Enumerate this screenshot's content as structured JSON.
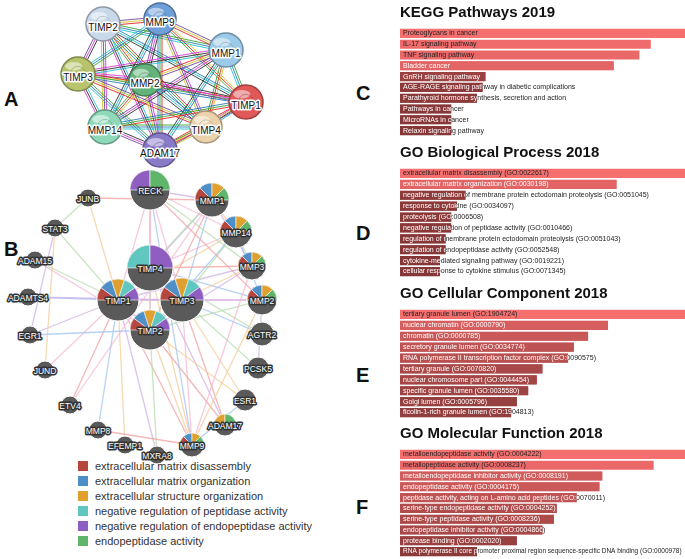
{
  "chart_data": [
    {
      "type": "bar",
      "annotations": [
        "C"
      ],
      "title": "KEGG Pathways 2019",
      "orientation": "horizontal",
      "categories": [
        "Proteoglycans in cancer",
        "IL-17 signaling pathway",
        "TNF signaling pathway",
        "Bladder cancer",
        "GnRH signaling pathway",
        "AGE-RAGE signaling pathway in diabetic complications",
        "Parathyroid hormone synthesis, secretion and action",
        "Pathways in cancer",
        "MicroRNAs in cancer",
        "Relaxin signaling pathway"
      ],
      "values": [
        100,
        88,
        84,
        75,
        30,
        29,
        27,
        18,
        18,
        18
      ],
      "colors": [
        "#f56f6f",
        "#f06b6b",
        "#ea6868",
        "#e26464",
        "#9c4141",
        "#8f3a3a",
        "#8c3939",
        "#873737",
        "#873737",
        "#873737"
      ],
      "xlim": [
        0,
        100
      ],
      "tick_labels": false,
      "grid": false
    },
    {
      "type": "bar",
      "annotations": [
        "D"
      ],
      "title": "GO Biological Process 2018",
      "orientation": "horizontal",
      "categories": [
        "extracellular matrix disassembly (GO:0022617)",
        "extracellular matrix organization (GO:0030198)",
        "negative regulation of membrane protein ectodomain proteolysis (GO:0051045)",
        "response to cytokine (GO:0034097)",
        "proteolysis (GO:0006508)",
        "negative regulation of peptidase activity (GO:0010466)",
        "regulation of membrane protein ectodomain proteolysis (GO:0051043)",
        "regulation of endopeptidase activity (GO:0052548)",
        "cytokine-mediated signaling pathway (GO:0019221)",
        "cellular response to cytokine stimulus (GO:0071345)"
      ],
      "values": [
        100,
        76,
        23,
        20,
        18,
        18,
        16,
        16,
        14,
        14
      ],
      "colors": [
        "#f56f6f",
        "#e26464",
        "#8f3a3a",
        "#8c3939",
        "#8a3838",
        "#8a3838",
        "#873737",
        "#873737",
        "#853636",
        "#853636"
      ],
      "xlim": [
        0,
        100
      ],
      "tick_labels": false,
      "grid": false
    },
    {
      "type": "bar",
      "annotations": [
        "E"
      ],
      "title": "GO Cellular Component 2018",
      "orientation": "horizontal",
      "categories": [
        "tertiary granule lumen (GO:1904724)",
        "nuclear chromatin (GO:0000790)",
        "chromatin (GO:0000785)",
        "secretory granule lumen (GO:0034774)",
        "RNA polymerase II transcription factor complex (GO:0090575)",
        "tertiary granule (GO:0070820)",
        "nuclear chromosome part (GO:0044454)",
        "specific granule lumen (GO:0035580)",
        "Golgi lumen (GO:0005796)",
        "ficolin-1-rich granule lumen (GO:1904813)"
      ],
      "values": [
        100,
        73,
        66,
        61,
        59,
        50,
        48,
        45,
        41,
        39
      ],
      "colors": [
        "#f56f6f",
        "#d65e5e",
        "#c95858",
        "#bf5353",
        "#b95050",
        "#a84848",
        "#a44646",
        "#9e4343",
        "#974040",
        "#933e3e"
      ],
      "xlim": [
        0,
        100
      ],
      "tick_labels": false,
      "grid": false
    },
    {
      "type": "bar",
      "annotations": [
        "F"
      ],
      "title": "GO Molecular Function 2018",
      "orientation": "horizontal",
      "categories": [
        "metalloendopeptidase activity (GO:0004222)",
        "metallopeptidase activity (GO:0008237)",
        "metalloendopeptidase inhibitor activity (GO:0008191)",
        "endopeptidase activity (GO:0004175)",
        "peptidase activity, acting on L-amino acid peptides (GO:0070011)",
        "serine-type endopeptidase activity (GO:0004252)",
        "serine-type peptidase activity (GO:0008236)",
        "endopeptidase inhibitor activity (GO:0004866)",
        "protease binding (GO:0002020)",
        "RNA polymerase II core promoter proximal region sequence-specific DNA binding (GO:0000978)"
      ],
      "values": [
        100,
        89,
        71,
        70,
        62,
        55,
        54,
        50,
        41,
        27
      ],
      "colors": [
        "#f56f6f",
        "#ea6868",
        "#cf5b5b",
        "#cc5959",
        "#c05454",
        "#b04c4c",
        "#ad4a4a",
        "#a84848",
        "#994141",
        "#8c3939"
      ],
      "xlim": [
        0,
        100
      ],
      "tick_labels": false,
      "grid": false
    }
  ],
  "networks": [
    {
      "label": "A",
      "nodes": [
        {
          "label": "TIMP2",
          "color": "#c9d9ea"
        },
        {
          "label": "MMP9",
          "color": "#6f9fd8"
        },
        {
          "label": "MMP1",
          "color": "#9ccbe9"
        },
        {
          "label": "TIMP3",
          "color": "#b7c46c"
        },
        {
          "label": "MMP2",
          "color": "#63b37a"
        },
        {
          "label": "TIMP1",
          "color": "#e05858"
        },
        {
          "label": "MMP14",
          "color": "#8fd9b9"
        },
        {
          "label": "TIMP4",
          "color": "#ecd2ab"
        },
        {
          "label": "ADAM17",
          "color": "#8a7bc9"
        }
      ],
      "links": {
        "TIMP2": [
          "MMP9",
          "MMP1",
          "TIMP3",
          "MMP2",
          "TIMP1",
          "MMP14",
          "TIMP4",
          "ADAM17"
        ],
        "MMP9": [
          "MMP1",
          "TIMP3",
          "MMP2",
          "TIMP1",
          "MMP14",
          "TIMP4",
          "ADAM17"
        ],
        "MMP1": [
          "TIMP3",
          "MMP2",
          "TIMP1",
          "MMP14",
          "TIMP4",
          "ADAM17"
        ],
        "TIMP3": [
          "MMP2",
          "TIMP1",
          "MMP14",
          "TIMP4",
          "ADAM17"
        ],
        "MMP2": [
          "TIMP1",
          "MMP14",
          "TIMP4",
          "ADAM17"
        ],
        "TIMP1": [
          "MMP14",
          "TIMP4",
          "ADAM17"
        ],
        "MMP14": [
          "TIMP4",
          "ADAM17"
        ],
        "TIMP4": [
          "ADAM17"
        ]
      }
    },
    {
      "label": "B",
      "nodes": [
        {
          "label": "RECK",
          "colors": [
            "#8e5fc0",
            "#5fb56a"
          ]
        },
        {
          "label": "MMP1",
          "colors": [
            "#b5473f",
            "#4f8fc8",
            "#e0a030",
            "#5fb56a"
          ]
        },
        {
          "label": "MMP14",
          "colors": [
            "#b5473f",
            "#4f8fc8",
            "#e0a030",
            "#5fb56a"
          ]
        },
        {
          "label": "MMP3",
          "colors": [
            "#b5473f",
            "#4f8fc8",
            "#e0a030",
            "#5fb56a"
          ]
        },
        {
          "label": "MMP2",
          "colors": [
            "#b5473f",
            "#4f8fc8",
            "#e0a030",
            "#5fb56a"
          ]
        },
        {
          "label": "AGTR2",
          "colors": []
        },
        {
          "label": "PCSK5",
          "colors": []
        },
        {
          "label": "ESR1",
          "colors": []
        },
        {
          "label": "ADAM17",
          "colors": [
            "#e0a030",
            "#5fb56a"
          ]
        },
        {
          "label": "MMP9",
          "colors": [
            "#b5473f",
            "#4f8fc8",
            "#e0a030",
            "#5fb56a"
          ]
        },
        {
          "label": "MXRA8",
          "colors": []
        },
        {
          "label": "EFEMP1",
          "colors": []
        },
        {
          "label": "MMP8",
          "colors": []
        },
        {
          "label": "ETV4",
          "colors": []
        },
        {
          "label": "JUND",
          "colors": []
        },
        {
          "label": "EGR1",
          "colors": []
        },
        {
          "label": "ADAMTS4",
          "colors": []
        },
        {
          "label": "ADAM15",
          "colors": []
        },
        {
          "label": "STAT3",
          "colors": []
        },
        {
          "label": "JUNB",
          "colors": []
        },
        {
          "label": "TIMP4",
          "colors": [
            "#5fc7c0",
            "#8e5fc0"
          ]
        },
        {
          "label": "TIMP1",
          "colors": [
            "#b5473f",
            "#4f8fc8",
            "#e0a030",
            "#5fc7c0",
            "#8e5fc0"
          ]
        },
        {
          "label": "TIMP3",
          "colors": [
            "#b5473f",
            "#4f8fc8",
            "#e0a030",
            "#5fc7c0",
            "#8e5fc0"
          ]
        },
        {
          "label": "TIMP2",
          "colors": [
            "#b5473f",
            "#4f8fc8",
            "#e0a030",
            "#5fc7c0",
            "#8e5fc0"
          ]
        }
      ],
      "links": {
        "TIMP4": [
          "RECK",
          "TIMP1",
          "TIMP2",
          "TIMP3",
          "MMP1",
          "MMP14",
          "MMP3",
          "MMP2",
          "AGTR2",
          "MMP9",
          "ADAM17"
        ],
        "TIMP1": [
          "RECK",
          "TIMP2",
          "TIMP3",
          "MMP1",
          "MMP14",
          "MMP3",
          "MMP2",
          "MMP9",
          "MMP8",
          "STAT3",
          "JUNB",
          "EGR1",
          "JUND",
          "ETV4",
          "ADAMTS4",
          "ADAM15",
          "EFEMP1",
          "MXRA8"
        ],
        "TIMP3": [
          "RECK",
          "TIMP2",
          "MMP1",
          "MMP14",
          "MMP3",
          "MMP2",
          "MMP9",
          "ADAM17",
          "AGTR2",
          "PCSK5",
          "ESR1",
          "ADAMTS4"
        ],
        "TIMP2": [
          "RECK",
          "MMP1",
          "MMP14",
          "MMP2",
          "MMP9",
          "MMP3",
          "ADAM15",
          "ADAM17",
          "EGR1",
          "MXRA8",
          "ESR1"
        ],
        "RECK": [
          "MMP1",
          "MMP14",
          "MMP2",
          "MMP9",
          "MMP3"
        ],
        "MMP1": [
          "MMP14",
          "MMP3",
          "ETV4",
          "JUNB"
        ],
        "MMP14": [
          "MMP2",
          "MMP3"
        ],
        "MMP2": [
          "MMP9",
          "PCSK5"
        ],
        "MMP3": [
          "MMP9"
        ],
        "MMP9": [
          "MMP8",
          "ESR1"
        ],
        "STAT3": [
          "JUNB",
          "JUND",
          "EGR1"
        ]
      },
      "legend": [
        {
          "label": "extracellular matrix disassembly",
          "color": "#b5473f"
        },
        {
          "label": "extracellular matrix organization",
          "color": "#4f8fc8"
        },
        {
          "label": "extracellular structure organization",
          "color": "#e0a030"
        },
        {
          "label": "negative regulation of peptidase activity",
          "color": "#5fc7c0"
        },
        {
          "label": "negative regulation of endopeptidase activity",
          "color": "#8e5fc0"
        },
        {
          "label": "endopeptidase activity",
          "color": "#5fb56a"
        }
      ]
    }
  ]
}
